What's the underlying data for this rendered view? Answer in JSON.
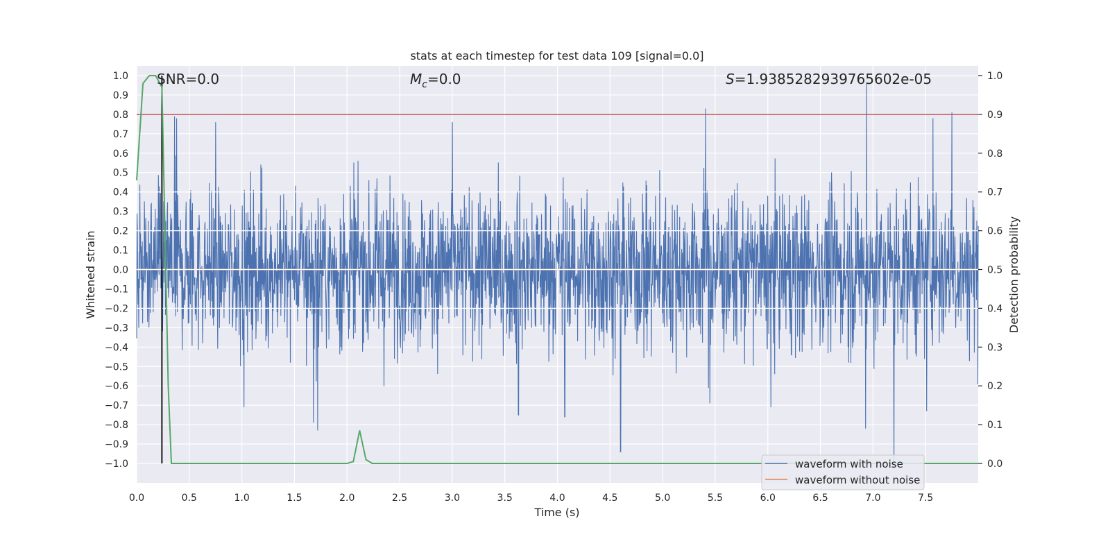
{
  "chart_data": {
    "type": "line",
    "title": "stats at each timestep for test data 109 [signal=0.0]",
    "xlabel": "Time (s)",
    "ylabel": "Whitened strain",
    "y2label": "Detection probability",
    "xlim": [
      0.0,
      8.0
    ],
    "ylim": [
      -1.1,
      1.05
    ],
    "y2lim": [
      -0.05,
      1.025
    ],
    "xticks": [
      "0.0",
      "0.5",
      "1.0",
      "1.5",
      "2.0",
      "2.5",
      "3.0",
      "3.5",
      "4.0",
      "4.5",
      "5.0",
      "5.5",
      "6.0",
      "6.5",
      "7.0",
      "7.5"
    ],
    "yticks": [
      "1.0",
      "0.9",
      "0.8",
      "0.7",
      "0.6",
      "0.5",
      "0.4",
      "0.3",
      "0.2",
      "0.1",
      "0.0",
      "−0.1",
      "−0.2",
      "−0.3",
      "−0.4",
      "−0.5",
      "−0.6",
      "−0.7",
      "−0.8",
      "−0.9",
      "−1.0"
    ],
    "y2ticks": [
      "1.0",
      "0.9",
      "0.8",
      "0.7",
      "0.6",
      "0.5",
      "0.4",
      "0.3",
      "0.2",
      "0.1",
      "0.0"
    ],
    "annotations": {
      "snr_label": "SNR=0.0",
      "mc_var": "M",
      "mc_sub": "c",
      "mc_value": "=0.0",
      "s_var": "S",
      "s_value": "=1.9385282939765602e-05"
    },
    "grid": true,
    "legend_position": "lower-right",
    "series": [
      {
        "name": "waveform with noise",
        "color": "#4c72b0",
        "description": "dense whitened noisy strain, roughly within ±0.5 with spikes to about ±0.95",
        "envelope": {
          "typical": 0.4,
          "max": 0.95
        },
        "spikes": [
          {
            "x": 0.36,
            "y": 0.79
          },
          {
            "x": 0.38,
            "y": 0.78
          },
          {
            "x": 4.6,
            "y": 0.95
          },
          {
            "x": 4.6,
            "y": -0.94
          },
          {
            "x": 5.41,
            "y": 0.83
          },
          {
            "x": 6.94,
            "y": 0.96
          },
          {
            "x": 6.93,
            "y": -0.82
          },
          {
            "x": 7.2,
            "y": -1.02
          },
          {
            "x": 7.75,
            "y": 0.81
          },
          {
            "x": 7.57,
            "y": 0.78
          },
          {
            "x": 1.72,
            "y": -0.83
          },
          {
            "x": 1.68,
            "y": -0.79
          },
          {
            "x": 1.02,
            "y": -0.71
          },
          {
            "x": 3.63,
            "y": -0.75
          },
          {
            "x": 4.07,
            "y": -0.76
          },
          {
            "x": 5.45,
            "y": -0.69
          },
          {
            "x": 6.03,
            "y": -0.71
          },
          {
            "x": 7.51,
            "y": -0.73
          },
          {
            "x": 0.75,
            "y": 0.76
          },
          {
            "x": 3.0,
            "y": 0.76
          }
        ]
      },
      {
        "name": "waveform without noise",
        "color": "#dd8452",
        "x": [
          0.0,
          8.0
        ],
        "y": [
          0.0,
          0.0
        ]
      }
    ],
    "probability_series": {
      "color": "#55a868",
      "x": [
        0.0,
        0.06,
        0.12,
        0.18,
        0.24,
        0.3,
        0.33,
        0.36,
        2.0,
        2.06,
        2.12,
        2.18,
        2.24,
        8.0
      ],
      "y": [
        0.73,
        0.98,
        1.0,
        1.0,
        0.97,
        0.2,
        0.0,
        0.0,
        0.0,
        0.005,
        0.085,
        0.01,
        0.0,
        0.0
      ]
    },
    "threshold_line": {
      "color": "#c44e52",
      "y2": 0.9
    },
    "marker_line": {
      "color": "#000000",
      "x": 0.24,
      "y2_top": 1.0
    },
    "white_hlines_y2": [
      0.7,
      0.6,
      0.5,
      0.4
    ]
  }
}
